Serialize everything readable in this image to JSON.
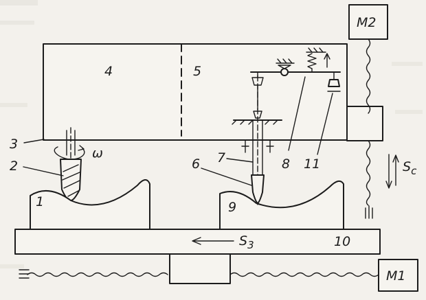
{
  "figure": {
    "labels": {
      "n1": "1",
      "n2": "2",
      "n3": "3",
      "n4": "4",
      "n5": "5",
      "n6": "6",
      "n7": "7",
      "n8": "8",
      "n9": "9",
      "n10": "10",
      "n11": "11",
      "omega": "ω",
      "s3_s": "S",
      "s3_sub": "3",
      "sc_s": "S",
      "sc_sub": "c",
      "m1": "M1",
      "m2": "M2"
    }
  }
}
